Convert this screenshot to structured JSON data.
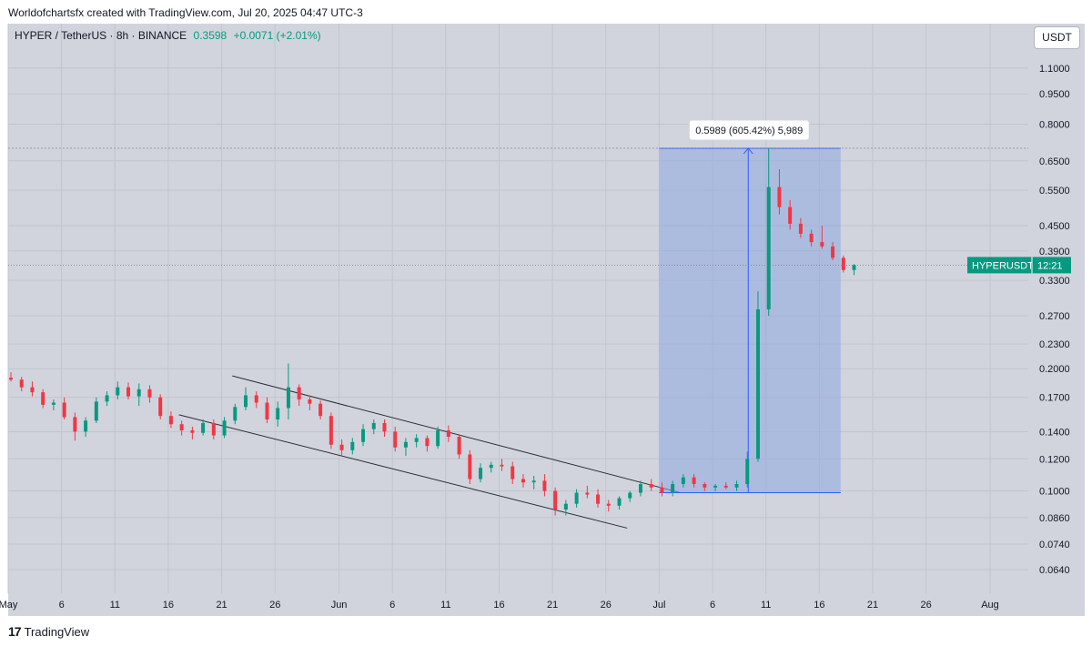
{
  "header": {
    "attribution": "Worldofchartsfx created with TradingView.com, Jul 20, 2025 04:47 UTC-3"
  },
  "symbol": {
    "name": "HYPER / TetherUS · 8h · BINANCE",
    "price": "0.3598",
    "change": "+0.0071 (+2.01%)"
  },
  "currency_button": "USDT",
  "footer": {
    "logo_text": "TradingView"
  },
  "colors": {
    "up": "#089981",
    "down": "#f23645",
    "range_fill": "#8ea7e0",
    "range_line": "#2962ff"
  },
  "chart_data": {
    "type": "candlestick",
    "scale": "log",
    "ylim": [
      0.056,
      1.25
    ],
    "y_ticks": [
      "1.1000",
      "0.9500",
      "0.8000",
      "0.6500",
      "0.5500",
      "0.4500",
      "0.3900",
      "0.3300",
      "0.2700",
      "0.2300",
      "0.2000",
      "0.1700",
      "0.1400",
      "0.1200",
      "0.1000",
      "0.0860",
      "0.0740",
      "0.0640"
    ],
    "x_ticks": [
      {
        "label": "May",
        "date": "2025-05-01"
      },
      {
        "label": "6",
        "date": "2025-05-06"
      },
      {
        "label": "11",
        "date": "2025-05-11"
      },
      {
        "label": "16",
        "date": "2025-05-16"
      },
      {
        "label": "21",
        "date": "2025-05-21"
      },
      {
        "label": "26",
        "date": "2025-05-26"
      },
      {
        "label": "Jun",
        "date": "2025-06-01"
      },
      {
        "label": "6",
        "date": "2025-06-06"
      },
      {
        "label": "11",
        "date": "2025-06-11"
      },
      {
        "label": "16",
        "date": "2025-06-16"
      },
      {
        "label": "21",
        "date": "2025-06-21"
      },
      {
        "label": "26",
        "date": "2025-06-26"
      },
      {
        "label": "Jul",
        "date": "2025-07-01"
      },
      {
        "label": "6",
        "date": "2025-07-06"
      },
      {
        "label": "11",
        "date": "2025-07-11"
      },
      {
        "label": "16",
        "date": "2025-07-16"
      },
      {
        "label": "21",
        "date": "2025-07-21"
      },
      {
        "label": "26",
        "date": "2025-07-26"
      },
      {
        "label": "Aug",
        "date": "2025-08-01"
      }
    ],
    "price_line": 0.3598,
    "last_price_tag": {
      "symbol": "HYPERUSDT",
      "countdown": "12:21"
    },
    "range_measure": {
      "label": "0.5989 (605.42%) 5,989",
      "from_date": "2025-07-01",
      "to_date": "2025-07-18",
      "low": 0.099,
      "high": 0.6979
    },
    "channel": {
      "upper": [
        [
          "2025-05-22",
          0.192
        ],
        [
          "2025-07-03",
          0.099
        ]
      ],
      "lower": [
        [
          "2025-05-17",
          0.154
        ],
        [
          "2025-06-28",
          0.081
        ]
      ]
    },
    "candles": [
      {
        "d": "2025-05-01",
        "o": 0.19,
        "h": 0.196,
        "l": 0.186,
        "c": 0.188
      },
      {
        "d": "2025-05-02",
        "o": 0.188,
        "h": 0.191,
        "l": 0.176,
        "c": 0.18
      },
      {
        "d": "2025-05-03",
        "o": 0.18,
        "h": 0.186,
        "l": 0.171,
        "c": 0.175
      },
      {
        "d": "2025-05-04",
        "o": 0.175,
        "h": 0.178,
        "l": 0.16,
        "c": 0.163
      },
      {
        "d": "2025-05-05",
        "o": 0.163,
        "h": 0.168,
        "l": 0.158,
        "c": 0.165
      },
      {
        "d": "2025-05-06",
        "o": 0.165,
        "h": 0.17,
        "l": 0.15,
        "c": 0.152
      },
      {
        "d": "2025-05-07",
        "o": 0.152,
        "h": 0.156,
        "l": 0.133,
        "c": 0.14
      },
      {
        "d": "2025-05-08",
        "o": 0.14,
        "h": 0.152,
        "l": 0.136,
        "c": 0.149
      },
      {
        "d": "2025-05-09",
        "o": 0.149,
        "h": 0.17,
        "l": 0.147,
        "c": 0.166
      },
      {
        "d": "2025-05-10",
        "o": 0.166,
        "h": 0.176,
        "l": 0.162,
        "c": 0.172
      },
      {
        "d": "2025-05-11",
        "o": 0.172,
        "h": 0.186,
        "l": 0.168,
        "c": 0.18
      },
      {
        "d": "2025-05-12",
        "o": 0.18,
        "h": 0.185,
        "l": 0.168,
        "c": 0.171
      },
      {
        "d": "2025-05-13",
        "o": 0.171,
        "h": 0.184,
        "l": 0.162,
        "c": 0.178
      },
      {
        "d": "2025-05-14",
        "o": 0.178,
        "h": 0.182,
        "l": 0.165,
        "c": 0.17
      },
      {
        "d": "2025-05-15",
        "o": 0.17,
        "h": 0.173,
        "l": 0.15,
        "c": 0.153
      },
      {
        "d": "2025-05-16",
        "o": 0.153,
        "h": 0.157,
        "l": 0.143,
        "c": 0.146
      },
      {
        "d": "2025-05-17",
        "o": 0.146,
        "h": 0.149,
        "l": 0.137,
        "c": 0.141
      },
      {
        "d": "2025-05-18",
        "o": 0.141,
        "h": 0.144,
        "l": 0.134,
        "c": 0.139
      },
      {
        "d": "2025-05-19",
        "o": 0.139,
        "h": 0.15,
        "l": 0.137,
        "c": 0.147
      },
      {
        "d": "2025-05-20",
        "o": 0.147,
        "h": 0.15,
        "l": 0.134,
        "c": 0.137
      },
      {
        "d": "2025-05-21",
        "o": 0.137,
        "h": 0.152,
        "l": 0.135,
        "c": 0.149
      },
      {
        "d": "2025-05-22",
        "o": 0.149,
        "h": 0.164,
        "l": 0.146,
        "c": 0.161
      },
      {
        "d": "2025-05-23",
        "o": 0.161,
        "h": 0.18,
        "l": 0.158,
        "c": 0.172
      },
      {
        "d": "2025-05-24",
        "o": 0.172,
        "h": 0.176,
        "l": 0.16,
        "c": 0.165
      },
      {
        "d": "2025-05-25",
        "o": 0.165,
        "h": 0.17,
        "l": 0.147,
        "c": 0.15
      },
      {
        "d": "2025-05-26",
        "o": 0.15,
        "h": 0.166,
        "l": 0.144,
        "c": 0.16
      },
      {
        "d": "2025-05-27",
        "o": 0.16,
        "h": 0.206,
        "l": 0.15,
        "c": 0.18
      },
      {
        "d": "2025-05-28",
        "o": 0.18,
        "h": 0.183,
        "l": 0.162,
        "c": 0.168
      },
      {
        "d": "2025-05-29",
        "o": 0.168,
        "h": 0.172,
        "l": 0.158,
        "c": 0.164
      },
      {
        "d": "2025-05-30",
        "o": 0.164,
        "h": 0.167,
        "l": 0.15,
        "c": 0.153
      },
      {
        "d": "2025-05-31",
        "o": 0.153,
        "h": 0.156,
        "l": 0.127,
        "c": 0.13
      },
      {
        "d": "2025-06-01",
        "o": 0.13,
        "h": 0.134,
        "l": 0.122,
        "c": 0.126
      },
      {
        "d": "2025-06-02",
        "o": 0.126,
        "h": 0.135,
        "l": 0.123,
        "c": 0.132
      },
      {
        "d": "2025-06-03",
        "o": 0.132,
        "h": 0.146,
        "l": 0.129,
        "c": 0.142
      },
      {
        "d": "2025-06-04",
        "o": 0.142,
        "h": 0.15,
        "l": 0.138,
        "c": 0.147
      },
      {
        "d": "2025-06-05",
        "o": 0.147,
        "h": 0.15,
        "l": 0.136,
        "c": 0.14
      },
      {
        "d": "2025-06-06",
        "o": 0.14,
        "h": 0.144,
        "l": 0.125,
        "c": 0.128
      },
      {
        "d": "2025-06-07",
        "o": 0.128,
        "h": 0.135,
        "l": 0.122,
        "c": 0.132
      },
      {
        "d": "2025-06-08",
        "o": 0.132,
        "h": 0.138,
        "l": 0.128,
        "c": 0.135
      },
      {
        "d": "2025-06-09",
        "o": 0.135,
        "h": 0.137,
        "l": 0.125,
        "c": 0.129
      },
      {
        "d": "2025-06-10",
        "o": 0.129,
        "h": 0.144,
        "l": 0.127,
        "c": 0.141
      },
      {
        "d": "2025-06-11",
        "o": 0.141,
        "h": 0.145,
        "l": 0.132,
        "c": 0.136
      },
      {
        "d": "2025-06-12",
        "o": 0.136,
        "h": 0.138,
        "l": 0.12,
        "c": 0.123
      },
      {
        "d": "2025-06-13",
        "o": 0.123,
        "h": 0.126,
        "l": 0.104,
        "c": 0.107
      },
      {
        "d": "2025-06-14",
        "o": 0.107,
        "h": 0.117,
        "l": 0.105,
        "c": 0.114
      },
      {
        "d": "2025-06-15",
        "o": 0.114,
        "h": 0.118,
        "l": 0.111,
        "c": 0.116
      },
      {
        "d": "2025-06-16",
        "o": 0.116,
        "h": 0.12,
        "l": 0.112,
        "c": 0.115
      },
      {
        "d": "2025-06-17",
        "o": 0.115,
        "h": 0.118,
        "l": 0.104,
        "c": 0.107
      },
      {
        "d": "2025-06-18",
        "o": 0.107,
        "h": 0.11,
        "l": 0.102,
        "c": 0.105
      },
      {
        "d": "2025-06-19",
        "o": 0.105,
        "h": 0.109,
        "l": 0.101,
        "c": 0.106
      },
      {
        "d": "2025-06-20",
        "o": 0.106,
        "h": 0.11,
        "l": 0.097,
        "c": 0.1
      },
      {
        "d": "2025-06-21",
        "o": 0.1,
        "h": 0.102,
        "l": 0.087,
        "c": 0.09
      },
      {
        "d": "2025-06-22",
        "o": 0.09,
        "h": 0.095,
        "l": 0.087,
        "c": 0.093
      },
      {
        "d": "2025-06-23",
        "o": 0.093,
        "h": 0.101,
        "l": 0.091,
        "c": 0.099
      },
      {
        "d": "2025-06-24",
        "o": 0.099,
        "h": 0.103,
        "l": 0.096,
        "c": 0.098
      },
      {
        "d": "2025-06-25",
        "o": 0.098,
        "h": 0.101,
        "l": 0.091,
        "c": 0.093
      },
      {
        "d": "2025-06-26",
        "o": 0.093,
        "h": 0.095,
        "l": 0.089,
        "c": 0.092
      },
      {
        "d": "2025-06-27",
        "o": 0.092,
        "h": 0.097,
        "l": 0.09,
        "c": 0.096
      },
      {
        "d": "2025-06-28",
        "o": 0.096,
        "h": 0.1,
        "l": 0.094,
        "c": 0.099
      },
      {
        "d": "2025-06-29",
        "o": 0.099,
        "h": 0.106,
        "l": 0.097,
        "c": 0.104
      },
      {
        "d": "2025-06-30",
        "o": 0.104,
        "h": 0.107,
        "l": 0.1,
        "c": 0.102
      },
      {
        "d": "2025-07-01",
        "o": 0.102,
        "h": 0.105,
        "l": 0.097,
        "c": 0.099
      },
      {
        "d": "2025-07-02",
        "o": 0.099,
        "h": 0.106,
        "l": 0.097,
        "c": 0.104
      },
      {
        "d": "2025-07-03",
        "o": 0.104,
        "h": 0.11,
        "l": 0.102,
        "c": 0.108
      },
      {
        "d": "2025-07-04",
        "o": 0.108,
        "h": 0.11,
        "l": 0.102,
        "c": 0.104
      },
      {
        "d": "2025-07-05",
        "o": 0.104,
        "h": 0.105,
        "l": 0.1,
        "c": 0.102
      },
      {
        "d": "2025-07-06",
        "o": 0.102,
        "h": 0.104,
        "l": 0.1,
        "c": 0.103
      },
      {
        "d": "2025-07-07",
        "o": 0.103,
        "h": 0.105,
        "l": 0.101,
        "c": 0.102
      },
      {
        "d": "2025-07-08",
        "o": 0.102,
        "h": 0.106,
        "l": 0.1,
        "c": 0.104
      },
      {
        "d": "2025-07-09",
        "o": 0.104,
        "h": 0.125,
        "l": 0.102,
        "c": 0.12
      },
      {
        "d": "2025-07-10",
        "o": 0.12,
        "h": 0.31,
        "l": 0.118,
        "c": 0.28
      },
      {
        "d": "2025-07-11",
        "o": 0.28,
        "h": 0.698,
        "l": 0.27,
        "c": 0.56
      },
      {
        "d": "2025-07-12",
        "o": 0.56,
        "h": 0.62,
        "l": 0.48,
        "c": 0.5
      },
      {
        "d": "2025-07-13",
        "o": 0.5,
        "h": 0.52,
        "l": 0.44,
        "c": 0.455
      },
      {
        "d": "2025-07-14",
        "o": 0.455,
        "h": 0.47,
        "l": 0.42,
        "c": 0.43
      },
      {
        "d": "2025-07-15",
        "o": 0.43,
        "h": 0.44,
        "l": 0.4,
        "c": 0.41
      },
      {
        "d": "2025-07-16",
        "o": 0.41,
        "h": 0.45,
        "l": 0.395,
        "c": 0.4
      },
      {
        "d": "2025-07-17",
        "o": 0.4,
        "h": 0.41,
        "l": 0.37,
        "c": 0.375
      },
      {
        "d": "2025-07-18",
        "o": 0.375,
        "h": 0.38,
        "l": 0.345,
        "c": 0.35
      },
      {
        "d": "2025-07-19",
        "o": 0.35,
        "h": 0.362,
        "l": 0.34,
        "c": 0.3598
      }
    ]
  }
}
